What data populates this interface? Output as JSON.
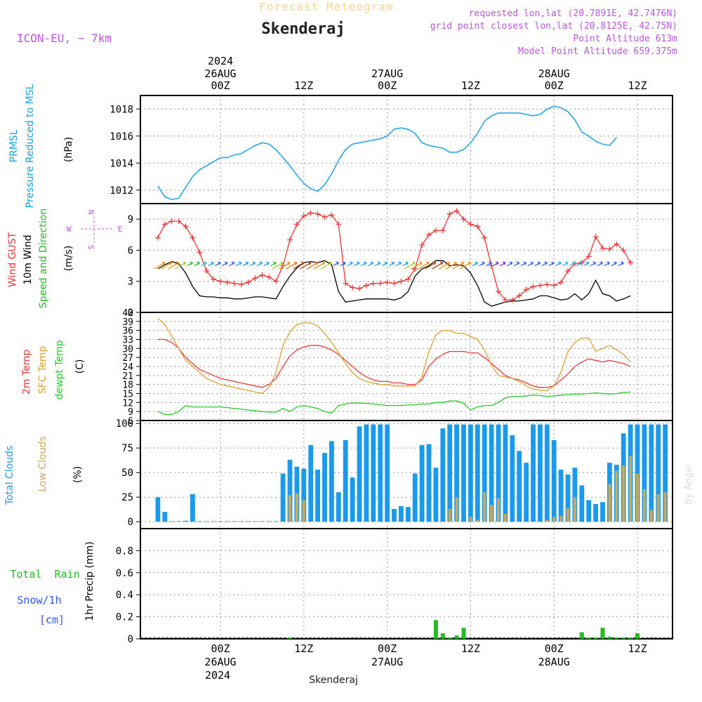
{
  "header": {
    "top_label": "Forecast Meteogram",
    "station": "Skenderaj",
    "model": "ICON-EU, ~ 7km",
    "requested": "requested lon,lat (20.7891E, 42.7476N)",
    "grid_point": "grid point closest lon,lat (20.8125E, 42.75N)",
    "point_altitude": "Point Altitude 613m",
    "model_altitude": "Model Point Altitude 659.375m",
    "footer_station": "Skenderaj",
    "credit": "by Angel"
  },
  "time_axis": {
    "top_year": "2024",
    "bottom_year": "2024",
    "hours": [
      "00Z",
      "12Z",
      "00Z",
      "12Z",
      "00Z",
      "12Z"
    ],
    "dates": [
      "26AUG",
      "27AUG",
      "28AUG"
    ],
    "colors": {
      "label": "#000000"
    }
  },
  "colors": {
    "pressure": "#1aa0e8",
    "gust": "#ee3333",
    "wind": "#000000",
    "wind_green": "#22bb22",
    "temp": "#e83a3a",
    "sfc": "#e0a030",
    "dew": "#22cc22",
    "cloud_total": "#1a9aee",
    "cloud_low": "#c8aa5a",
    "rain": "#22bb22",
    "snow": "#3355ee",
    "purple": "#bb55dd",
    "grid": "#999999"
  },
  "chart_data": [
    {
      "type": "line",
      "title": "PRMSL Pressure Reduced to MSL",
      "ylabel": "(hPa)",
      "label_lines": [
        "PRMSL",
        "Pressure Reduced to MSL"
      ],
      "unit": "(hPa)",
      "ylim": [
        1011,
        1019
      ],
      "yticks": [
        1012,
        1014,
        1016,
        1018
      ],
      "x_hours_from": -9,
      "x_step": 1,
      "values": [
        1012.3,
        1011.5,
        1011.3,
        1011.4,
        1012.2,
        1013.0,
        1013.5,
        1013.8,
        1014.1,
        1014.4,
        1014.4,
        1014.6,
        1014.7,
        1015.0,
        1015.3,
        1015.5,
        1015.4,
        1015.0,
        1014.4,
        1013.8,
        1013.1,
        1012.5,
        1012.1,
        1011.9,
        1012.4,
        1013.2,
        1014.2,
        1015.0,
        1015.4,
        1015.5,
        1015.6,
        1015.7,
        1015.8,
        1016.0,
        1016.5,
        1016.6,
        1016.5,
        1016.2,
        1015.5,
        1015.3,
        1015.2,
        1015.1,
        1014.8,
        1014.8,
        1015.0,
        1015.5,
        1016.2,
        1017.1,
        1017.5,
        1017.7,
        1017.7,
        1017.7,
        1017.7,
        1017.6,
        1017.5,
        1017.6,
        1018.0,
        1018.2,
        1018.1,
        1017.8,
        1017.2,
        1016.3,
        1016.0,
        1015.6,
        1015.4,
        1015.3,
        1015.9
      ]
    },
    {
      "type": "line",
      "title": "Wind GUST / 10m Wind Speed and Direction",
      "ylabel": "(m/s)",
      "label_lines": [
        "Wind GUST",
        "10m Wind",
        "Speed and Direction"
      ],
      "unit": "(m/s)",
      "compass": [
        "N",
        "S",
        "W",
        "E"
      ],
      "ylim": [
        0,
        10.5
      ],
      "yticks": [
        0,
        3,
        6,
        9
      ],
      "x_hours_from": -9,
      "x_step": 1,
      "series": [
        {
          "name": "Wind GUST",
          "values": [
            7.2,
            8.5,
            8.8,
            8.8,
            8.3,
            7.2,
            5.8,
            4.0,
            3.2,
            3.0,
            2.9,
            2.8,
            2.7,
            2.9,
            3.3,
            3.6,
            3.4,
            3.0,
            4.5,
            7.0,
            8.5,
            9.3,
            9.6,
            9.5,
            9.2,
            9.4,
            8.5,
            2.8,
            2.4,
            2.3,
            2.6,
            2.8,
            2.8,
            2.9,
            2.8,
            3.0,
            3.2,
            4.2,
            6.5,
            7.5,
            7.9,
            7.9,
            9.5,
            9.8,
            9.0,
            8.5,
            8.3,
            7.2,
            4.5,
            2.0,
            1.2,
            1.2,
            1.6,
            2.2,
            2.5,
            2.6,
            2.7,
            2.6,
            2.9,
            4.0,
            4.7,
            4.8,
            5.4,
            7.3,
            6.2,
            6.1,
            6.6,
            6.0,
            4.8
          ]
        },
        {
          "name": "10m Wind",
          "values": [
            4.2,
            4.6,
            4.9,
            4.7,
            3.8,
            2.5,
            1.6,
            1.5,
            1.5,
            1.4,
            1.4,
            1.3,
            1.3,
            1.4,
            1.5,
            1.5,
            1.4,
            1.3,
            2.5,
            3.5,
            4.3,
            4.8,
            4.9,
            4.8,
            5.0,
            4.6,
            2.0,
            1.0,
            1.1,
            1.2,
            1.3,
            1.3,
            1.3,
            1.3,
            1.2,
            1.4,
            2.0,
            3.5,
            4.2,
            4.5,
            5.0,
            5.0,
            4.5,
            4.6,
            4.5,
            3.8,
            2.6,
            1.0,
            0.6,
            0.8,
            1.0,
            1.1,
            1.1,
            1.2,
            1.3,
            1.6,
            1.6,
            1.4,
            1.2,
            1.3,
            1.8,
            1.2,
            1.8,
            3.1,
            1.8,
            1.6,
            1.1,
            1.3,
            1.6
          ]
        }
      ],
      "barb_colors": [
        "#ee8800",
        "#ee8800",
        "#ee8800",
        "#99cc22",
        "#22bb22",
        "#22bb22",
        "#22bbdd",
        "#1a9aee",
        "#3355ee",
        "#3355ee",
        "#3355ee",
        "#1a9aee",
        "#1a9aee",
        "#1a9aee",
        "#1a9aee",
        "#1a9aee",
        "#22bb22",
        "#99cc22",
        "#ee8800",
        "#ee6600",
        "#aa3300",
        "#aa3300",
        "#ee6600",
        "#ee8800",
        "#99cc22",
        "#3355ee",
        "#3355ee",
        "#1a9aee",
        "#1a9aee",
        "#1a9aee",
        "#1a9aee",
        "#1a9aee",
        "#1a9aee",
        "#1a9aee",
        "#1a9aee",
        "#1a9aee",
        "#99cc22",
        "#ee8800",
        "#ee8800",
        "#aa5500",
        "#aa3300",
        "#ee8800",
        "#ee8800",
        "#ee8800",
        "#ee8800",
        "#1a9aee",
        "#3355ee",
        "#3355ee",
        "#7722cc",
        "#7722cc",
        "#3355ee",
        "#3355ee",
        "#3355ee",
        "#3355ee",
        "#3355ee",
        "#3355ee",
        "#3355ee",
        "#1a9aee",
        "#22bbdd",
        "#22bbdd",
        "#1a9aee",
        "#1a9aee",
        "#3355ee",
        "#3355ee",
        "#3355ee",
        "#3355ee",
        "#3355ee"
      ]
    },
    {
      "type": "line",
      "title": "2m Temp / SFC Temp / dewpt Temp",
      "ylabel": "(C)",
      "label_lines": [
        "2m Temp",
        "SFC Temp",
        "dewpt Temp"
      ],
      "unit": "(C)",
      "ylim": [
        6,
        42
      ],
      "yticks": [
        6,
        9,
        12,
        15,
        18,
        21,
        24,
        27,
        30,
        33,
        36,
        39,
        42
      ],
      "x_hours_from": -9,
      "x_step": 1,
      "series": [
        {
          "name": "2m Temp",
          "values": [
            33.0,
            33.0,
            32.0,
            30.0,
            27.0,
            25.0,
            23.0,
            22.0,
            21.0,
            20.0,
            19.5,
            19.0,
            18.5,
            18.0,
            17.5,
            17.0,
            18.0,
            20.0,
            24.0,
            27.5,
            29.5,
            30.5,
            31.0,
            31.0,
            30.5,
            29.5,
            28.0,
            26.0,
            24.0,
            22.0,
            20.5,
            19.5,
            19.0,
            19.0,
            18.5,
            18.5,
            18.0,
            18.0,
            19.5,
            24.0,
            26.5,
            28.0,
            29.0,
            29.0,
            29.0,
            28.5,
            28.5,
            27.0,
            25.0,
            23.0,
            21.0,
            20.0,
            19.5,
            18.5,
            17.5,
            17.0,
            17.0,
            17.5,
            19.5,
            21.5,
            24.0,
            25.5,
            26.5,
            26.0,
            25.5,
            26.0,
            25.5,
            25.0,
            24.0
          ]
        },
        {
          "name": "SFC Temp",
          "values": [
            40.0,
            38.0,
            34.0,
            30.0,
            26.0,
            24.0,
            22.0,
            20.0,
            19.0,
            18.0,
            17.5,
            17.0,
            16.5,
            16.0,
            15.5,
            15.0,
            17.0,
            22.0,
            31.0,
            35.5,
            38.0,
            38.5,
            38.5,
            37.5,
            35.0,
            32.0,
            28.5,
            25.0,
            22.0,
            20.0,
            19.0,
            18.5,
            18.0,
            18.0,
            17.5,
            17.5,
            17.5,
            17.5,
            20.5,
            29.0,
            34.5,
            36.0,
            36.0,
            35.0,
            35.0,
            34.0,
            33.0,
            29.5,
            24.5,
            21.0,
            20.5,
            20.0,
            19.0,
            17.5,
            16.5,
            16.0,
            16.0,
            17.5,
            22.0,
            29.0,
            32.0,
            33.5,
            33.5,
            29.0,
            30.0,
            31.0,
            29.5,
            28.0,
            25.5
          ]
        },
        {
          "name": "dewpt Temp",
          "values": [
            9.0,
            8.0,
            8.0,
            9.0,
            11.0,
            10.5,
            10.5,
            10.5,
            10.5,
            10.5,
            10.3,
            10.0,
            9.8,
            9.5,
            9.3,
            9.0,
            8.8,
            8.8,
            10.0,
            9.0,
            10.5,
            11.0,
            10.5,
            10.0,
            9.0,
            8.5,
            11.0,
            11.5,
            11.8,
            11.8,
            11.7,
            11.5,
            11.2,
            11.0,
            11.0,
            11.0,
            11.2,
            11.2,
            11.5,
            11.5,
            12.0,
            12.0,
            12.5,
            12.5,
            11.8,
            9.5,
            10.5,
            11.0,
            11.0,
            12.0,
            13.5,
            14.0,
            14.0,
            14.2,
            14.5,
            14.3,
            14.0,
            14.2,
            14.4,
            14.6,
            14.8,
            14.8,
            15.0,
            15.2,
            15.0,
            14.8,
            15.0,
            15.3,
            15.5
          ]
        }
      ]
    },
    {
      "type": "bar",
      "title": "Total Clouds / Low Clouds",
      "ylabel": "(%)",
      "label_lines": [
        "Total Clouds",
        "Low Clouds"
      ],
      "unit": "(%)",
      "ylim": [
        -7,
        103
      ],
      "yticks": [
        0,
        25,
        50,
        75,
        100
      ],
      "x_hours_from": -9,
      "x_step": 1,
      "series": [
        {
          "name": "Total Clouds",
          "values": [
            25,
            10,
            0,
            0,
            1,
            28,
            0,
            0,
            0,
            0,
            0,
            0,
            0,
            0,
            0,
            0,
            0,
            0,
            49,
            63,
            56,
            54,
            78,
            53,
            70,
            82,
            30,
            83,
            45,
            97,
            99,
            99,
            99,
            99,
            13,
            16,
            15,
            49,
            78,
            79,
            55,
            95,
            99,
            99,
            99,
            99,
            99,
            99,
            99,
            99,
            99,
            88,
            72,
            60,
            99,
            99,
            99,
            83,
            53,
            48,
            55,
            37,
            22,
            18,
            20,
            60,
            58,
            90,
            99,
            99,
            99,
            99,
            99,
            99
          ]
        },
        {
          "name": "Low Clouds",
          "values": [
            0,
            0,
            0,
            0,
            0,
            0,
            0,
            0,
            0,
            0,
            0,
            0,
            0,
            0,
            0,
            0,
            0,
            0,
            0,
            27,
            29,
            22,
            0,
            0,
            0,
            0,
            0,
            0,
            0,
            0,
            0,
            0,
            0,
            0,
            0,
            0,
            0,
            0,
            0,
            0,
            0,
            0,
            13,
            25,
            0,
            5,
            2,
            30,
            17,
            24,
            8,
            0,
            0,
            0,
            0,
            0,
            2,
            5,
            6,
            14,
            25,
            0,
            0,
            0,
            0,
            38,
            52,
            57,
            67,
            49,
            33,
            12,
            28,
            30
          ]
        }
      ]
    },
    {
      "type": "bar",
      "title": "Total Rain Snow/1h [cm]",
      "ylabel": "1hr Precip (mm)",
      "label_lines": [
        "Total  Rain",
        "Snow/1h",
        "[cm]"
      ],
      "unit": "1hr Precip (mm)",
      "ylim": [
        0,
        1.0
      ],
      "yticks": [
        0,
        0.2,
        0.4,
        0.6,
        0.8
      ],
      "x_hours_from": -9,
      "x_step": 1,
      "series": [
        {
          "name": "Total Rain",
          "values": [
            0,
            0,
            0,
            0,
            0,
            0,
            0,
            0,
            0,
            0,
            0,
            0,
            0,
            0,
            0,
            0,
            0,
            0,
            0,
            0.01,
            0,
            0,
            0,
            0,
            0,
            0,
            0,
            0,
            0,
            0,
            0,
            0,
            0,
            0,
            0,
            0,
            0,
            0,
            0,
            0,
            0.17,
            0.05,
            0.01,
            0.03,
            0.1,
            0,
            0,
            0,
            0,
            0,
            0,
            0,
            0,
            0,
            0,
            0,
            0,
            0,
            0,
            0,
            0,
            0.06,
            0.01,
            0.01,
            0.1,
            0.02,
            0.01,
            0.01,
            0.01,
            0.05
          ]
        },
        {
          "name": "Snow/1h",
          "values": []
        }
      ]
    }
  ]
}
